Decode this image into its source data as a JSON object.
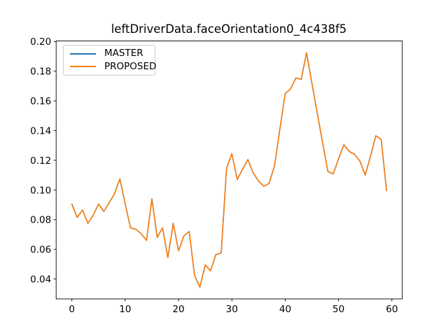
{
  "figure": {
    "background": "#ffffff",
    "axis_color": "#000000"
  },
  "chart_data": {
    "type": "line",
    "title": "leftDriverData.faceOrientation0_4c438f5",
    "xlabel": "",
    "ylabel": "",
    "grid": false,
    "legend_position": "upper left",
    "xlim": [
      -2.95,
      61.95
    ],
    "ylim": [
      0.0266,
      0.2004
    ],
    "x_ticks": [
      0,
      10,
      20,
      30,
      40,
      50,
      60
    ],
    "x_tick_labels": [
      "0",
      "10",
      "20",
      "30",
      "40",
      "50",
      "60"
    ],
    "y_ticks": [
      0.04,
      0.06,
      0.08,
      0.1,
      0.12,
      0.14,
      0.16,
      0.18,
      0.2
    ],
    "y_tick_labels": [
      "0.04",
      "0.06",
      "0.08",
      "0.10",
      "0.12",
      "0.14",
      "0.16",
      "0.18",
      "0.20"
    ],
    "x": [
      0,
      1,
      2,
      3,
      4,
      5,
      6,
      7,
      8,
      9,
      10,
      11,
      12,
      13,
      14,
      15,
      16,
      17,
      18,
      19,
      20,
      21,
      22,
      23,
      24,
      25,
      26,
      27,
      28,
      29,
      30,
      31,
      32,
      33,
      34,
      35,
      36,
      37,
      38,
      39,
      40,
      41,
      42,
      43,
      44,
      45,
      46,
      47,
      48,
      49,
      50,
      51,
      52,
      53,
      54,
      55,
      56,
      57,
      58,
      59
    ],
    "series": [
      {
        "name": "MASTER",
        "color": "#1f77b4",
        "values": [
          0.0905,
          0.0815,
          0.0865,
          0.0775,
          0.083,
          0.0905,
          0.0855,
          0.0915,
          0.0975,
          0.1075,
          0.0905,
          0.0745,
          0.0735,
          0.0705,
          0.066,
          0.094,
          0.068,
          0.0745,
          0.0545,
          0.0775,
          0.059,
          0.069,
          0.072,
          0.0425,
          0.0345,
          0.0495,
          0.0455,
          0.0565,
          0.0575,
          0.1145,
          0.1245,
          0.107,
          0.114,
          0.1205,
          0.1115,
          0.106,
          0.1025,
          0.1045,
          0.1165,
          0.141,
          0.165,
          0.168,
          0.1755,
          0.1745,
          0.1925,
          0.172,
          0.152,
          0.132,
          0.1125,
          0.1108,
          0.121,
          0.1305,
          0.126,
          0.124,
          0.1195,
          0.11,
          0.123,
          0.1365,
          0.134,
          0.0995
        ]
      },
      {
        "name": "PROPOSED",
        "color": "#ff7f0e",
        "values": [
          0.0905,
          0.0815,
          0.0865,
          0.0775,
          0.083,
          0.0905,
          0.0855,
          0.0915,
          0.0975,
          0.1075,
          0.0905,
          0.0745,
          0.0735,
          0.0705,
          0.066,
          0.094,
          0.068,
          0.0745,
          0.0545,
          0.0775,
          0.059,
          0.069,
          0.072,
          0.0425,
          0.0345,
          0.0495,
          0.0455,
          0.0565,
          0.0575,
          0.1145,
          0.1245,
          0.107,
          0.114,
          0.1205,
          0.1115,
          0.106,
          0.1025,
          0.1045,
          0.1165,
          0.141,
          0.165,
          0.168,
          0.1755,
          0.1745,
          0.1925,
          0.172,
          0.152,
          0.132,
          0.1125,
          0.1108,
          0.121,
          0.1305,
          0.126,
          0.124,
          0.1195,
          0.11,
          0.123,
          0.1365,
          0.134,
          0.0995
        ]
      }
    ]
  }
}
